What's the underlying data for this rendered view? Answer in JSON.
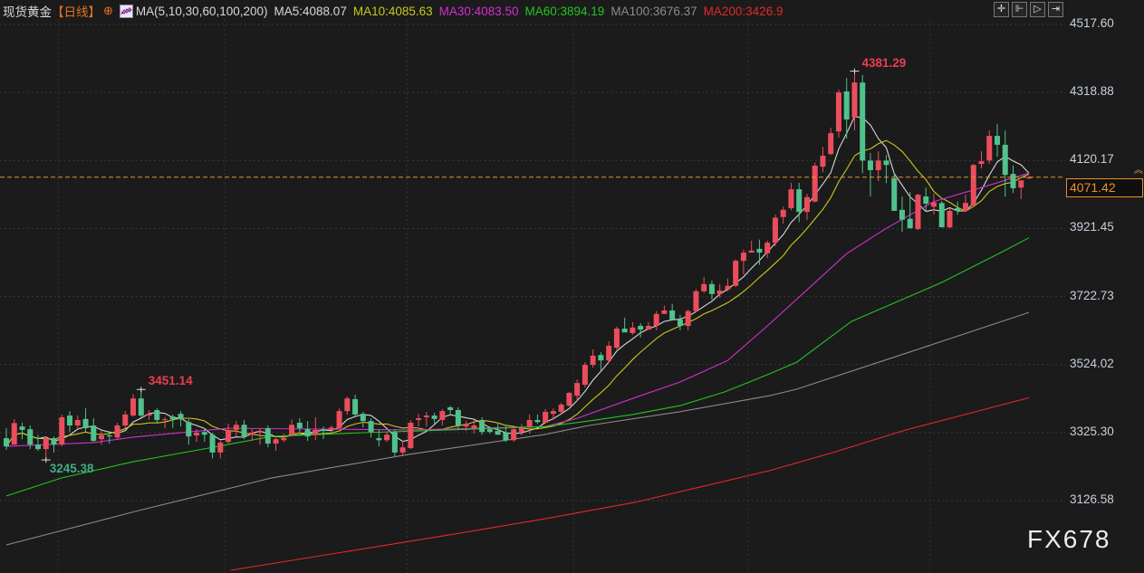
{
  "header": {
    "title": "现货黄金",
    "period": "【日线】",
    "ma_params": "MA(5,10,30,60,100,200)",
    "ma_readouts": [
      {
        "label": "MA5:4088.07",
        "color": "#d8d8d8"
      },
      {
        "label": "MA10:4085.63",
        "color": "#c8c81e"
      },
      {
        "label": "MA30:4083.50",
        "color": "#d22ed2"
      },
      {
        "label": "MA60:3894.19",
        "color": "#22c422"
      },
      {
        "label": "MA100:3676.37",
        "color": "#8a8a8a"
      },
      {
        "label": "MA200:3426.9",
        "color": "#e52828"
      }
    ]
  },
  "toolbar": {
    "icons": [
      "crosshair-icon",
      "range-icon",
      "play-icon",
      "exit-icon"
    ]
  },
  "watermark": "FX678",
  "chart_data": {
    "type": "candlestick",
    "y_axis": {
      "range": [
        2914.8,
        4517.6
      ],
      "ticks": [
        "4517.60",
        "4318.88",
        "4120.17",
        "3921.45",
        "3722.73",
        "3524.02",
        "3325.30",
        "3126.58"
      ],
      "tick_values": [
        4517.6,
        4318.88,
        4120.17,
        3921.45,
        3722.73,
        3524.02,
        3325.3,
        3126.58
      ]
    },
    "grid": true,
    "up_color": "#ec4d5c",
    "down_color": "#50c28c",
    "current_price": {
      "value": 4071.42,
      "label": "4071.42",
      "color": "#e8902a"
    },
    "annotations": [
      {
        "label": "4381.29",
        "value": 4381.29,
        "candle": 107,
        "color": "#ea3f4f"
      },
      {
        "label": "3451.14",
        "value": 3451.14,
        "candle": 17,
        "color": "#ea3f4f"
      },
      {
        "label": "3245.38",
        "value": 3245.38,
        "candle": 5,
        "color": "#3fae83"
      }
    ],
    "columns": [
      "open",
      "high",
      "low",
      "close"
    ],
    "candles": [
      [
        3309,
        3338,
        3275,
        3285
      ],
      [
        3290,
        3364,
        3290,
        3353
      ],
      [
        3343,
        3354,
        3306,
        3333
      ],
      [
        3335,
        3346,
        3277,
        3290
      ],
      [
        3290,
        3319,
        3272,
        3277
      ],
      [
        3277,
        3314,
        3245.38,
        3309
      ],
      [
        3309,
        3314,
        3267,
        3290
      ],
      [
        3290,
        3378,
        3285,
        3370
      ],
      [
        3375,
        3388,
        3327,
        3346
      ],
      [
        3346,
        3375,
        3338,
        3362
      ],
      [
        3365,
        3396,
        3327,
        3338
      ],
      [
        3346,
        3367,
        3298,
        3301
      ],
      [
        3306,
        3330,
        3290,
        3317
      ],
      [
        3317,
        3330,
        3293,
        3314
      ],
      [
        3311,
        3354,
        3306,
        3346
      ],
      [
        3346,
        3388,
        3338,
        3378
      ],
      [
        3375,
        3438,
        3372,
        3425
      ],
      [
        3425,
        3451.14,
        3370,
        3375
      ],
      [
        3375,
        3391,
        3362,
        3380
      ],
      [
        3391,
        3396,
        3354,
        3362
      ],
      [
        3362,
        3370,
        3338,
        3364
      ],
      [
        3372,
        3378,
        3338,
        3364
      ],
      [
        3380,
        3388,
        3343,
        3364
      ],
      [
        3356,
        3364,
        3290,
        3314
      ],
      [
        3317,
        3335,
        3298,
        3325
      ],
      [
        3327,
        3338,
        3298,
        3319
      ],
      [
        3319,
        3325,
        3250,
        3267
      ],
      [
        3267,
        3301,
        3250,
        3296
      ],
      [
        3298,
        3351,
        3293,
        3333
      ],
      [
        3333,
        3359,
        3314,
        3348
      ],
      [
        3348,
        3362,
        3306,
        3314
      ],
      [
        3319,
        3335,
        3301,
        3325
      ],
      [
        3325,
        3338,
        3290,
        3330
      ],
      [
        3338,
        3346,
        3282,
        3293
      ],
      [
        3293,
        3311,
        3272,
        3306
      ],
      [
        3303,
        3322,
        3298,
        3309
      ],
      [
        3319,
        3364,
        3314,
        3348
      ],
      [
        3354,
        3367,
        3327,
        3338
      ],
      [
        3335,
        3359,
        3301,
        3314
      ],
      [
        3319,
        3370,
        3303,
        3333
      ],
      [
        3335,
        3343,
        3306,
        3330
      ],
      [
        3333,
        3346,
        3327,
        3340
      ],
      [
        3338,
        3396,
        3335,
        3388
      ],
      [
        3388,
        3431,
        3378,
        3425
      ],
      [
        3423,
        3436,
        3372,
        3378
      ],
      [
        3380,
        3386,
        3340,
        3359
      ],
      [
        3359,
        3367,
        3311,
        3327
      ],
      [
        3309,
        3333,
        3285,
        3303
      ],
      [
        3303,
        3327,
        3298,
        3319
      ],
      [
        3327,
        3335,
        3256,
        3267
      ],
      [
        3267,
        3301,
        3256,
        3282
      ],
      [
        3280,
        3362,
        3277,
        3354
      ],
      [
        3362,
        3380,
        3343,
        3367
      ],
      [
        3370,
        3386,
        3343,
        3375
      ],
      [
        3375,
        3383,
        3351,
        3365
      ],
      [
        3362,
        3394,
        3346,
        3388
      ],
      [
        3399,
        3404,
        3375,
        3391
      ],
      [
        3391,
        3399,
        3333,
        3346
      ],
      [
        3343,
        3359,
        3330,
        3351
      ],
      [
        3338,
        3362,
        3322,
        3346
      ],
      [
        3359,
        3370,
        3319,
        3327
      ],
      [
        3335,
        3343,
        3322,
        3327
      ],
      [
        3330,
        3351,
        3319,
        3319
      ],
      [
        3325,
        3343,
        3298,
        3303
      ],
      [
        3303,
        3346,
        3298,
        3335
      ],
      [
        3327,
        3351,
        3317,
        3338
      ],
      [
        3343,
        3378,
        3322,
        3362
      ],
      [
        3362,
        3378,
        3351,
        3356
      ],
      [
        3354,
        3394,
        3351,
        3386
      ],
      [
        3380,
        3396,
        3362,
        3388
      ],
      [
        3386,
        3412,
        3380,
        3407
      ],
      [
        3404,
        3444,
        3401,
        3441
      ],
      [
        3433,
        3481,
        3417,
        3470
      ],
      [
        3465,
        3531,
        3457,
        3523
      ],
      [
        3523,
        3568,
        3515,
        3550
      ],
      [
        3552,
        3560,
        3507,
        3536
      ],
      [
        3536,
        3592,
        3528,
        3579
      ],
      [
        3573,
        3635,
        3568,
        3629
      ],
      [
        3629,
        3661,
        3618,
        3618
      ],
      [
        3616,
        3648,
        3611,
        3632
      ],
      [
        3637,
        3645,
        3603,
        3626
      ],
      [
        3626,
        3648,
        3626,
        3637
      ],
      [
        3637,
        3680,
        3624,
        3672
      ],
      [
        3672,
        3696,
        3672,
        3682
      ],
      [
        3682,
        3701,
        3653,
        3656
      ],
      [
        3656,
        3669,
        3624,
        3637
      ],
      [
        3637,
        3685,
        3624,
        3680
      ],
      [
        3680,
        3744,
        3677,
        3738
      ],
      [
        3738,
        3780,
        3733,
        3759
      ],
      [
        3759,
        3769,
        3714,
        3730
      ],
      [
        3730,
        3759,
        3719,
        3740
      ],
      [
        3743,
        3775,
        3738,
        3754
      ],
      [
        3754,
        3831,
        3751,
        3827
      ],
      [
        3827,
        3860,
        3788,
        3851
      ],
      [
        3851,
        3886,
        3851,
        3857
      ],
      [
        3862,
        3889,
        3815,
        3851
      ],
      [
        3849,
        3886,
        3835,
        3880
      ],
      [
        3880,
        3962,
        3870,
        3953
      ],
      [
        3955,
        3985,
        3936,
        3976
      ],
      [
        3981,
        4055,
        3975,
        4036
      ],
      [
        4036,
        4055,
        3940,
        3970
      ],
      [
        3970,
        4023,
        3946,
        4013
      ],
      [
        4000,
        4114,
        3998,
        4105
      ],
      [
        4102,
        4160,
        4086,
        4134
      ],
      [
        4139,
        4216,
        4136,
        4200
      ],
      [
        4205,
        4327,
        4187,
        4319
      ],
      [
        4322,
        4361,
        4184,
        4240
      ],
      [
        4245,
        4381.29,
        4208,
        4348
      ],
      [
        4348,
        4370,
        4083,
        4120
      ],
      [
        4120,
        4142,
        4015,
        4092
      ],
      [
        4092,
        4147,
        4060,
        4120
      ],
      [
        4120,
        4136,
        4054,
        4107
      ],
      [
        4068,
        4086,
        3973,
        3973
      ],
      [
        3976,
        4015,
        3912,
        3947
      ],
      [
        3950,
        4028,
        3922,
        3922
      ],
      [
        3920,
        4023,
        3917,
        4020
      ],
      [
        4015,
        4041,
        3970,
        3994
      ],
      [
        3985,
        4023,
        3962,
        3998
      ],
      [
        3996,
        4002,
        3925,
        3925
      ],
      [
        3925,
        3981,
        3922,
        3973
      ],
      [
        3981,
        4000,
        3962,
        3973
      ],
      [
        3973,
        4020,
        3970,
        3996
      ],
      [
        3989,
        4110,
        3986,
        4107
      ],
      [
        4110,
        4147,
        4097,
        4118
      ],
      [
        4120,
        4208,
        4110,
        4192
      ],
      [
        4192,
        4227,
        4131,
        4166
      ],
      [
        4166,
        4208,
        4015,
        4078
      ],
      [
        4081,
        4105,
        4025,
        4039
      ],
      [
        4041,
        4062,
        4007,
        4062
      ],
      [
        4068,
        4075,
        4066,
        4071.42
      ]
    ],
    "moving_averages": [
      {
        "name": "MA5",
        "period": 5,
        "color": "#d8d8d8"
      },
      {
        "name": "MA10",
        "period": 10,
        "color": "#c8c81e"
      },
      {
        "name": "MA30",
        "color": "#d22ed2",
        "points": [
          [
            0,
            3285
          ],
          [
            11,
            3296
          ],
          [
            16,
            3312
          ],
          [
            28,
            3338
          ],
          [
            51,
            3333
          ],
          [
            68,
            3343
          ],
          [
            72,
            3367
          ],
          [
            79,
            3425
          ],
          [
            85,
            3473
          ],
          [
            91,
            3536
          ],
          [
            96,
            3637
          ],
          [
            100,
            3721
          ],
          [
            106,
            3848
          ],
          [
            111,
            3922
          ],
          [
            117,
            4000
          ],
          [
            123,
            4041
          ],
          [
            129,
            4083.5
          ]
        ]
      },
      {
        "name": "MA60",
        "color": "#22c422",
        "points": [
          [
            0,
            3140
          ],
          [
            7,
            3193
          ],
          [
            16,
            3240
          ],
          [
            25.5,
            3280
          ],
          [
            33.5,
            3314
          ],
          [
            45,
            3325
          ],
          [
            56,
            3333
          ],
          [
            68,
            3343
          ],
          [
            73.5,
            3359
          ],
          [
            79,
            3378
          ],
          [
            85,
            3404
          ],
          [
            90.6,
            3444
          ],
          [
            96.3,
            3497
          ],
          [
            99.7,
            3531
          ],
          [
            106.6,
            3650
          ],
          [
            118,
            3764
          ],
          [
            125.7,
            3854
          ],
          [
            129,
            3894.19
          ]
        ]
      },
      {
        "name": "MA100",
        "color": "#8a8a8a",
        "points": [
          [
            0,
            2997
          ],
          [
            16.3,
            3095
          ],
          [
            33.5,
            3193
          ],
          [
            50.6,
            3261
          ],
          [
            67.8,
            3319
          ],
          [
            73.5,
            3346
          ],
          [
            84.9,
            3386
          ],
          [
            96.3,
            3433
          ],
          [
            99.7,
            3452
          ],
          [
            113.5,
            3557
          ],
          [
            129,
            3676.37
          ]
        ]
      },
      {
        "name": "MA200",
        "color": "#e52828",
        "points": [
          [
            28.3,
            2923
          ],
          [
            56.3,
            3028
          ],
          [
            67.8,
            3073
          ],
          [
            79.2,
            3121
          ],
          [
            96.3,
            3214
          ],
          [
            104.3,
            3267
          ],
          [
            113.5,
            3333
          ],
          [
            129,
            3426.9
          ]
        ]
      }
    ],
    "month_separators_at_candle": [
      7,
      28,
      51,
      72,
      94,
      117
    ]
  }
}
